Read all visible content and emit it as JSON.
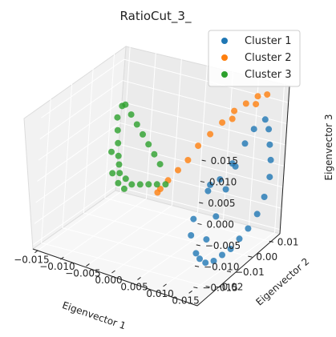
{
  "chart_data": {
    "type": "scatter",
    "projection": "3d",
    "title": "RatioCut_3_",
    "xlabel": "Eigenvector 1",
    "ylabel": "Eigenvector 2",
    "zlabel": "Eigenvector 3",
    "xlim": [
      -0.016,
      0.016
    ],
    "ylim": [
      -0.024,
      0.015
    ],
    "zlim": [
      -0.016,
      0.019
    ],
    "xticks": [
      "−0.015",
      "−0.010",
      "−0.005",
      "0.000",
      "0.005",
      "0.010",
      "0.015"
    ],
    "yticks": [
      "−0.02",
      "−0.01",
      "0.00",
      "0.01"
    ],
    "zticks": [
      "−0.015",
      "−0.010",
      "−0.005",
      "0.000",
      "0.005",
      "0.010",
      "0.015"
    ],
    "grid": true,
    "legend_position": "top-right",
    "series": [
      {
        "name": "Cluster 1",
        "color": "#1f77b4",
        "points": [
          [
            0.0145,
            0.008,
            0.013
          ],
          [
            0.0145,
            0.01,
            0.01
          ],
          [
            0.0145,
            0.011,
            0.006
          ],
          [
            0.0145,
            0.012,
            0.002
          ],
          [
            0.0145,
            0.012,
            -0.002
          ],
          [
            0.0145,
            0.01,
            -0.006
          ],
          [
            0.0145,
            0.007,
            -0.009
          ],
          [
            0.0145,
            0.003,
            -0.011
          ],
          [
            0.0145,
            -0.001,
            -0.012
          ],
          [
            0.0145,
            -0.005,
            -0.013
          ],
          [
            0.0145,
            -0.009,
            -0.013
          ],
          [
            0.0145,
            -0.013,
            -0.013
          ],
          [
            0.0145,
            -0.017,
            -0.012
          ],
          [
            0.0145,
            -0.02,
            -0.01
          ],
          [
            0.0145,
            -0.022,
            -0.008
          ],
          [
            0.014,
            0.004,
            0.012
          ],
          [
            0.014,
            0.0,
            0.01
          ],
          [
            0.014,
            -0.004,
            0.006
          ],
          [
            0.014,
            -0.008,
            0.002
          ],
          [
            0.014,
            -0.012,
            -0.003
          ],
          [
            0.014,
            -0.016,
            -0.007
          ],
          [
            0.013,
            -0.003,
            0.006
          ],
          [
            0.012,
            -0.006,
            0.003
          ],
          [
            0.011,
            -0.009,
            0.001
          ],
          [
            0.0105,
            -0.014,
            -0.004
          ],
          [
            0.011,
            -0.016,
            -0.007
          ],
          [
            0.0125,
            -0.012,
            0.004
          ]
        ]
      },
      {
        "name": "Cluster 2",
        "color": "#ff7f0e",
        "points": [
          [
            0.013,
            0.012,
            0.017
          ],
          [
            0.012,
            0.01,
            0.017
          ],
          [
            0.011,
            0.007,
            0.016
          ],
          [
            0.01,
            0.004,
            0.015
          ],
          [
            0.009,
            0.001,
            0.013
          ],
          [
            0.008,
            -0.002,
            0.011
          ],
          [
            0.007,
            -0.005,
            0.009
          ],
          [
            0.006,
            -0.007,
            0.006
          ],
          [
            0.005,
            -0.009,
            0.004
          ],
          [
            0.004,
            -0.011,
            0.002
          ],
          [
            0.003,
            -0.012,
            0.0
          ],
          [
            0.0025,
            -0.012,
            -0.001
          ],
          [
            0.0125,
            0.008,
            0.016
          ],
          [
            0.0105,
            0.002,
            0.014
          ]
        ]
      },
      {
        "name": "Cluster 3",
        "color": "#2ca02c",
        "points": [
          [
            -0.015,
            0.013,
            0.005
          ],
          [
            -0.015,
            0.011,
            0.003
          ],
          [
            -0.014,
            0.009,
            0.001
          ],
          [
            -0.013,
            0.007,
            -0.001
          ],
          [
            -0.012,
            0.005,
            -0.003
          ],
          [
            -0.011,
            0.003,
            -0.004
          ],
          [
            -0.01,
            0.001,
            -0.005
          ],
          [
            -0.008,
            -0.001,
            -0.005
          ],
          [
            -0.006,
            -0.003,
            -0.005
          ],
          [
            -0.004,
            -0.004,
            -0.004
          ],
          [
            -0.002,
            -0.005,
            -0.003
          ],
          [
            0.0,
            -0.006,
            -0.002
          ],
          [
            0.002,
            -0.007,
            -0.001
          ],
          [
            -0.014,
            0.012,
            0.006
          ],
          [
            -0.012,
            0.01,
            0.005
          ],
          [
            -0.01,
            0.008,
            0.004
          ],
          [
            -0.008,
            0.006,
            0.003
          ],
          [
            -0.006,
            0.004,
            0.002
          ],
          [
            -0.004,
            0.002,
            0.001
          ],
          [
            -0.002,
            0.0,
            0.0
          ],
          [
            -0.013,
            0.004,
            -0.002
          ],
          [
            -0.011,
            0.0,
            -0.005
          ],
          [
            -0.009,
            -0.002,
            -0.006
          ],
          [
            -0.007,
            -0.004,
            -0.006
          ]
        ]
      }
    ]
  }
}
